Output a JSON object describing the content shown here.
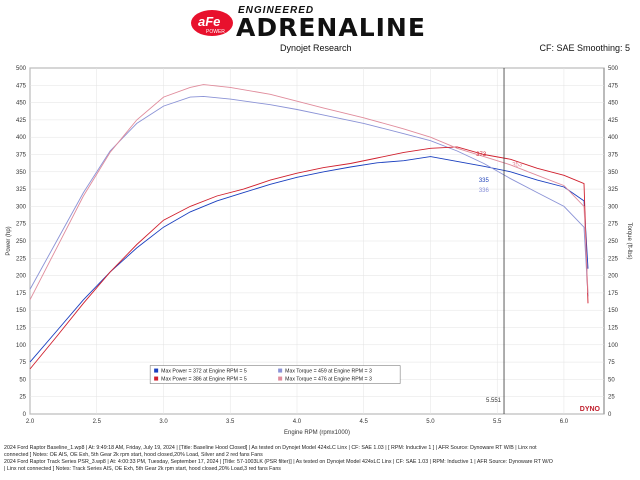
{
  "header": {
    "brand_top": "ENGINEERED",
    "brand_main": "ADRENALINE",
    "logo_text": "aFe",
    "logo_sub": "POWER",
    "center": "Dynojet Research",
    "right": "CF: SAE Smoothing: 5"
  },
  "footer": {
    "line1": "2024 Ford Raptor Baseline_1.wp8 | At: 9:49:18 AM, Friday, July 19, 2024 | [Title: Baseline Hood Closed] | As tested on Dynojet Model 424xLC Linx | CF: SAE 1.03 | [ RPM: Inductive 1 ] | AFR Source: Dynoware RT W/B | Linx not",
    "line2": "connected ] Notes: OE AIS, OE Exh, 5th Gear 2k rpm start, hood closed,20% Load, Silver and 2 red fans Fans",
    "line3": "2024 Ford Raptor Track Series PSR_3.wp8 | At: 4:00:33 PM, Tuesday, September 17, 2024 | [Title: 57-1003LK (PSR filter)] | As tested on Dynojet Model 424xLC Linx | CF: SAE 1.03 | RPM: Inductive 1 | AFR Source: Dynoware RT W/O",
    "line4": "| Linx not connected ] Notes: Track Series AIS, OE Exh, 5th Gear 2k rpm start, hood closed,20% Load,3 red fans Fans"
  },
  "chart_data": {
    "type": "line",
    "title": "",
    "xlabel": "Engine RPM (rpmx1000)",
    "ylabel_left": "Power (hp)",
    "ylabel_right": "Torque (ft-lbs)",
    "xlim": [
      2.0,
      6.3
    ],
    "ylim_left": [
      0,
      500
    ],
    "ylim_right": [
      0,
      500
    ],
    "x_ticks": [
      2.0,
      2.5,
      3.0,
      3.5,
      4.0,
      4.5,
      5.0,
      5.5,
      6.0
    ],
    "x_tick_labels": [
      "2.0",
      "2.5",
      "3.0",
      "3.5",
      "4.0",
      "4.5",
      "5.0",
      "5.5",
      "6.0"
    ],
    "y_ticks": [
      0,
      25,
      50,
      75,
      100,
      125,
      150,
      175,
      200,
      225,
      250,
      275,
      300,
      325,
      350,
      375,
      400,
      425,
      450,
      475,
      500
    ],
    "y_tick_labels": [
      "0",
      "25",
      "50",
      "75",
      "100",
      "125",
      "150",
      "175",
      "200",
      "225",
      "250",
      "275",
      "300",
      "325",
      "350",
      "375",
      "400",
      "425",
      "450",
      "475",
      "500"
    ],
    "cursor": {
      "x": 5.551,
      "label": "5.551"
    },
    "annotations": [
      {
        "text": "373",
        "x": 5.38,
        "y": 373,
        "color": "#d22b3a"
      },
      {
        "text": "353",
        "x": 5.65,
        "y": 358,
        "color": "#e48a9a"
      },
      {
        "text": "335",
        "x": 5.4,
        "y": 335,
        "color": "#2244bb"
      },
      {
        "text": "336",
        "x": 5.4,
        "y": 321,
        "color": "#8890d8"
      }
    ],
    "legend": {
      "placement": "lower-center",
      "entries": [
        {
          "text": "Max Power = 372 at Engine RPM = 5",
          "color": "#1a3fbf"
        },
        {
          "text": "Max Torque = 459 at Engine RPM = 3",
          "color": "#8b93d6"
        },
        {
          "text": "Max Power = 386 at Engine RPM = 5",
          "color": "#d0202e"
        },
        {
          "text": "Max Torque = 476 at Engine RPM = 3",
          "color": "#e08c9c"
        }
      ]
    },
    "series": [
      {
        "color": "#1a3fbf",
        "x": [
          2.0,
          2.2,
          2.4,
          2.6,
          2.8,
          3.0,
          3.2,
          3.4,
          3.6,
          3.8,
          4.0,
          4.2,
          4.4,
          4.6,
          4.8,
          5.0,
          5.2,
          5.4,
          5.6,
          5.8,
          6.0,
          6.15,
          6.18
        ],
        "y": [
          75,
          120,
          165,
          205,
          240,
          270,
          292,
          308,
          320,
          332,
          342,
          350,
          357,
          363,
          366,
          372,
          365,
          358,
          350,
          338,
          328,
          308,
          210
        ]
      },
      {
        "color": "#8b93d6",
        "x": [
          2.0,
          2.2,
          2.4,
          2.6,
          2.8,
          3.0,
          3.2,
          3.3,
          3.5,
          3.8,
          4.0,
          4.2,
          4.5,
          4.8,
          5.0,
          5.2,
          5.4,
          5.6,
          5.8,
          6.0,
          6.15,
          6.18
        ],
        "y": [
          180,
          250,
          320,
          380,
          420,
          445,
          458,
          459,
          455,
          447,
          440,
          432,
          420,
          405,
          395,
          380,
          362,
          340,
          320,
          300,
          270,
          170
        ]
      },
      {
        "color": "#d0202e",
        "x": [
          2.0,
          2.2,
          2.4,
          2.6,
          2.8,
          3.0,
          3.2,
          3.4,
          3.6,
          3.8,
          4.0,
          4.2,
          4.4,
          4.6,
          4.8,
          5.0,
          5.2,
          5.4,
          5.6,
          5.8,
          6.0,
          6.15,
          6.18
        ],
        "y": [
          65,
          112,
          160,
          205,
          245,
          280,
          300,
          315,
          325,
          338,
          348,
          356,
          362,
          370,
          378,
          384,
          386,
          375,
          368,
          355,
          345,
          333,
          160
        ]
      },
      {
        "color": "#e08c9c",
        "x": [
          2.0,
          2.2,
          2.4,
          2.6,
          2.8,
          3.0,
          3.2,
          3.3,
          3.5,
          3.8,
          4.0,
          4.2,
          4.5,
          4.8,
          5.0,
          5.2,
          5.4,
          5.6,
          5.8,
          6.0,
          6.15,
          6.18
        ],
        "y": [
          165,
          240,
          315,
          378,
          425,
          458,
          472,
          476,
          472,
          462,
          452,
          442,
          428,
          412,
          400,
          384,
          372,
          360,
          345,
          330,
          300,
          175
        ]
      }
    ]
  }
}
